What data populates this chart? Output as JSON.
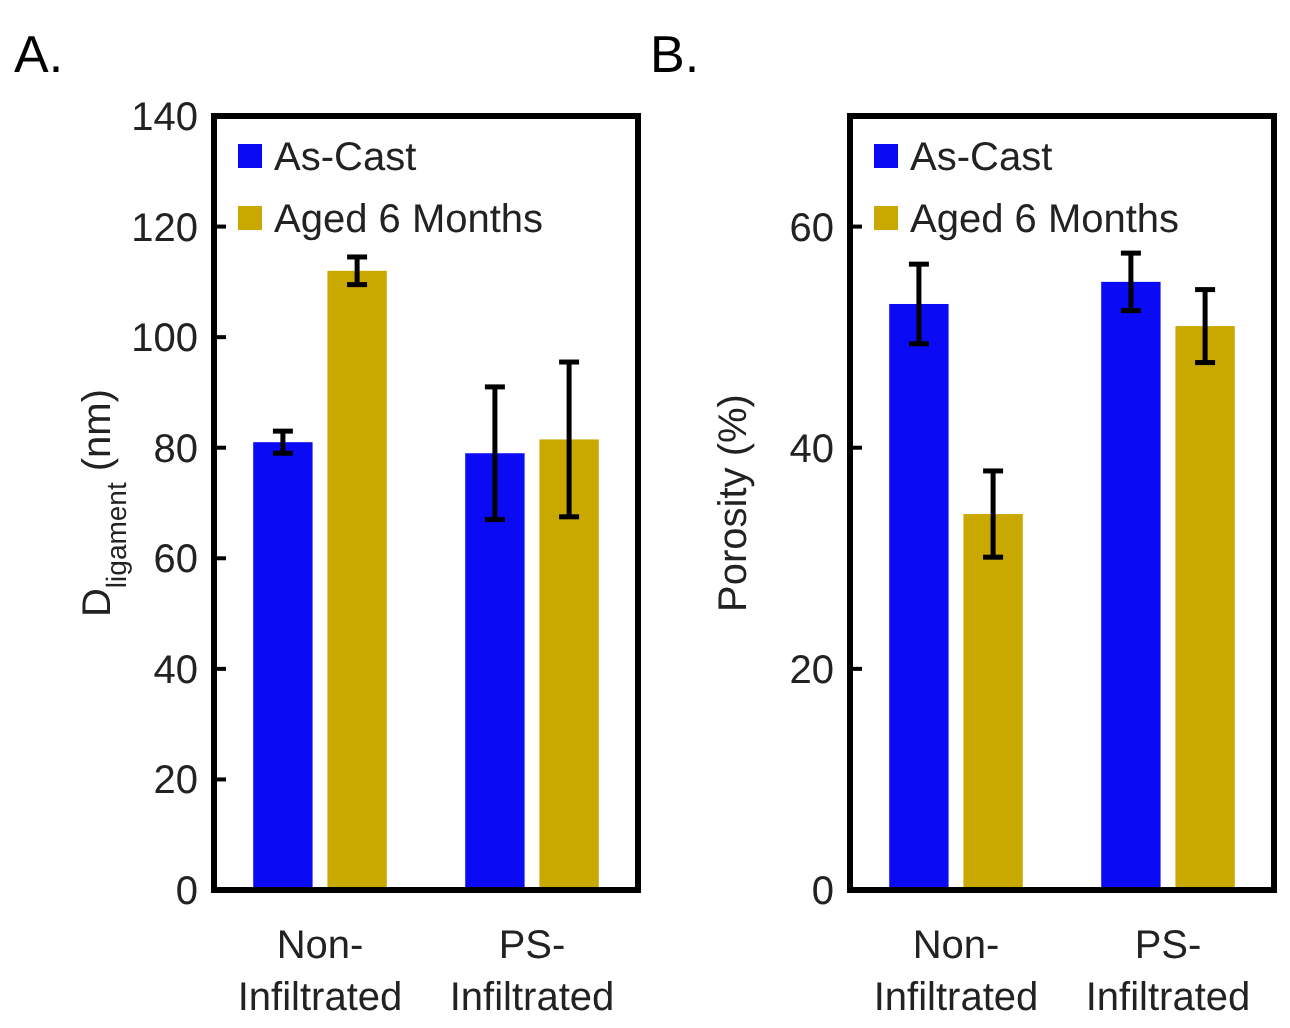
{
  "chart_data": [
    {
      "type": "bar",
      "title": "A.",
      "ylabel": "D$_{ligament}$ (nm)",
      "categories": [
        "Non-\nInfiltrated",
        "PS-\nInfiltrated"
      ],
      "ylim": [
        0,
        140
      ],
      "yticks": [
        0,
        20,
        40,
        60,
        80,
        100,
        120,
        140
      ],
      "legend": "top left",
      "grid": false,
      "series": [
        {
          "name": "As-Cast",
          "color": "#0a0af5",
          "values": [
            81,
            79
          ],
          "errors": [
            2,
            12
          ]
        },
        {
          "name": "Aged 6 Months",
          "color": "#c9a800",
          "values": [
            112,
            81.5
          ],
          "errors": [
            2.5,
            14
          ]
        }
      ]
    },
    {
      "type": "bar",
      "title": "B.",
      "ylabel": "Porosity (%)",
      "categories": [
        "Non-\nInfiltrated",
        "PS-\nInfiltrated"
      ],
      "ylim": [
        0,
        70
      ],
      "yticks": [
        0,
        20,
        40,
        60
      ],
      "legend": "top left",
      "grid": false,
      "series": [
        {
          "name": "As-Cast",
          "color": "#0a0af5",
          "values": [
            53,
            55
          ],
          "errors": [
            3.6,
            2.6
          ]
        },
        {
          "name": "Aged 6 Months",
          "color": "#c9a800",
          "values": [
            34,
            51
          ],
          "errors": [
            3.9,
            3.3
          ]
        }
      ]
    }
  ]
}
